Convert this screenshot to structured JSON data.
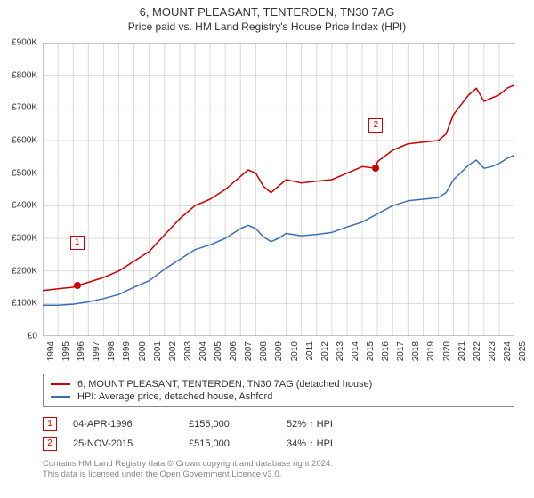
{
  "title": "6, MOUNT PLEASANT, TENTERDEN, TN30 7AG",
  "subtitle": "Price paid vs. HM Land Registry's House Price Index (HPI)",
  "chart": {
    "type": "line",
    "background_color": "#ffffff",
    "plot_bg_color": "#ffffff",
    "grid_color": "#d9d9d9",
    "axis_color": "#888888",
    "text_color": "#333333",
    "x_min": 1994,
    "x_max": 2025,
    "x_ticks": [
      1994,
      1995,
      1996,
      1997,
      1998,
      1999,
      2000,
      2001,
      2002,
      2003,
      2004,
      2005,
      2006,
      2007,
      2008,
      2009,
      2010,
      2011,
      2012,
      2013,
      2014,
      2015,
      2016,
      2017,
      2018,
      2019,
      2020,
      2021,
      2022,
      2023,
      2024,
      2025
    ],
    "y_min": 0,
    "y_max": 900000,
    "y_ticks": [
      0,
      100000,
      200000,
      300000,
      400000,
      500000,
      600000,
      700000,
      800000,
      900000
    ],
    "y_labels": [
      "£0",
      "£100K",
      "£200K",
      "£300K",
      "£400K",
      "£500K",
      "£600K",
      "£700K",
      "£800K",
      "£900K"
    ],
    "label_fontsize": 10,
    "title_fontsize": 13,
    "series": [
      {
        "name": "6, MOUNT PLEASANT, TENTERDEN, TN30 7AG (detached house)",
        "color": "#cc0000",
        "line_width": 1.5,
        "points": [
          [
            1994,
            140000
          ],
          [
            1995,
            145000
          ],
          [
            1996,
            150000
          ],
          [
            1996.26,
            155000
          ],
          [
            1997,
            165000
          ],
          [
            1998,
            180000
          ],
          [
            1999,
            200000
          ],
          [
            2000,
            230000
          ],
          [
            2001,
            260000
          ],
          [
            2002,
            310000
          ],
          [
            2003,
            360000
          ],
          [
            2004,
            400000
          ],
          [
            2005,
            420000
          ],
          [
            2006,
            450000
          ],
          [
            2007,
            490000
          ],
          [
            2007.5,
            510000
          ],
          [
            2008,
            500000
          ],
          [
            2008.5,
            460000
          ],
          [
            2009,
            440000
          ],
          [
            2009.5,
            460000
          ],
          [
            2010,
            480000
          ],
          [
            2011,
            470000
          ],
          [
            2012,
            475000
          ],
          [
            2013,
            480000
          ],
          [
            2014,
            500000
          ],
          [
            2015,
            520000
          ],
          [
            2015.9,
            515000
          ],
          [
            2016,
            535000
          ],
          [
            2017,
            570000
          ],
          [
            2018,
            590000
          ],
          [
            2019,
            595000
          ],
          [
            2020,
            600000
          ],
          [
            2020.5,
            620000
          ],
          [
            2021,
            680000
          ],
          [
            2022,
            740000
          ],
          [
            2022.5,
            760000
          ],
          [
            2023,
            720000
          ],
          [
            2023.5,
            730000
          ],
          [
            2024,
            740000
          ],
          [
            2024.5,
            760000
          ],
          [
            2025,
            770000
          ]
        ]
      },
      {
        "name": "HPI: Average price, detached house, Ashford",
        "color": "#3a6fb7",
        "line_width": 1.5,
        "points": [
          [
            1994,
            95000
          ],
          [
            1995,
            95000
          ],
          [
            1996,
            98000
          ],
          [
            1997,
            105000
          ],
          [
            1998,
            115000
          ],
          [
            1999,
            128000
          ],
          [
            2000,
            150000
          ],
          [
            2001,
            170000
          ],
          [
            2002,
            205000
          ],
          [
            2003,
            235000
          ],
          [
            2004,
            265000
          ],
          [
            2005,
            280000
          ],
          [
            2006,
            300000
          ],
          [
            2007,
            330000
          ],
          [
            2007.5,
            340000
          ],
          [
            2008,
            330000
          ],
          [
            2008.5,
            305000
          ],
          [
            2009,
            290000
          ],
          [
            2009.5,
            300000
          ],
          [
            2010,
            315000
          ],
          [
            2011,
            308000
          ],
          [
            2012,
            312000
          ],
          [
            2013,
            318000
          ],
          [
            2014,
            335000
          ],
          [
            2015,
            350000
          ],
          [
            2016,
            375000
          ],
          [
            2017,
            400000
          ],
          [
            2018,
            415000
          ],
          [
            2019,
            420000
          ],
          [
            2020,
            425000
          ],
          [
            2020.5,
            440000
          ],
          [
            2021,
            480000
          ],
          [
            2022,
            525000
          ],
          [
            2022.5,
            540000
          ],
          [
            2023,
            515000
          ],
          [
            2023.5,
            520000
          ],
          [
            2024,
            530000
          ],
          [
            2024.5,
            545000
          ],
          [
            2025,
            555000
          ]
        ]
      }
    ],
    "markers": [
      {
        "n": "1",
        "x": 1996.26,
        "y": 155000,
        "label_offset_y": -48
      },
      {
        "n": "2",
        "x": 2015.9,
        "y": 515000,
        "label_offset_y": -48
      }
    ],
    "marker_color": "#cc0000",
    "dot_color": "#cc0000"
  },
  "legend": {
    "items": [
      {
        "label": "6, MOUNT PLEASANT, TENTERDEN, TN30 7AG (detached house)",
        "color": "#cc0000"
      },
      {
        "label": "HPI: Average price, detached house, Ashford",
        "color": "#3a6fb7"
      }
    ]
  },
  "events": [
    {
      "n": "1",
      "date": "04-APR-1996",
      "price": "£155,000",
      "pct": "52% ↑ HPI"
    },
    {
      "n": "2",
      "date": "25-NOV-2015",
      "price": "£515,000",
      "pct": "34% ↑ HPI"
    }
  ],
  "footer": {
    "line1": "Contains HM Land Registry data © Crown copyright and database right 2024.",
    "line2": "This data is licensed under the Open Government Licence v3.0."
  }
}
